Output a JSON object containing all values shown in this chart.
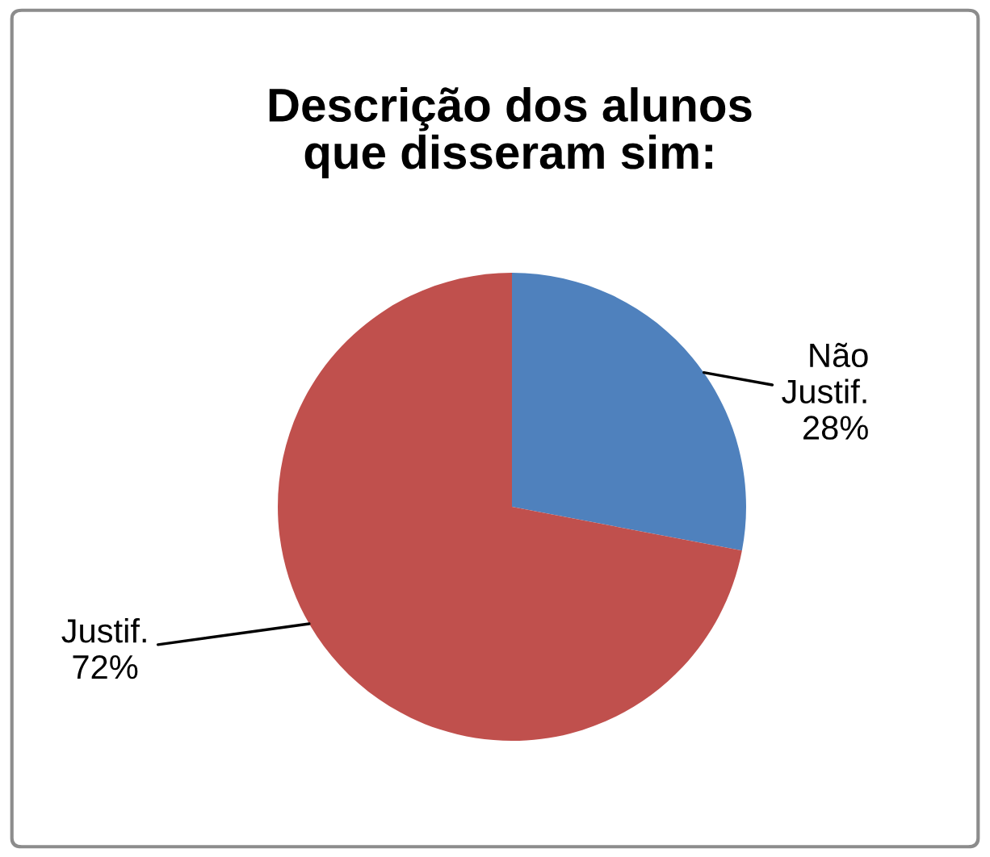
{
  "chart_data": {
    "type": "pie",
    "title": "Descrição dos alunos\nque disseram sim:",
    "categories": [
      "Não Justif.",
      "Justif."
    ],
    "values": [
      28,
      72
    ],
    "colors": [
      "#4f81bd",
      "#c0504d"
    ],
    "value_labels": [
      "28%",
      "72%"
    ],
    "legend": false
  }
}
